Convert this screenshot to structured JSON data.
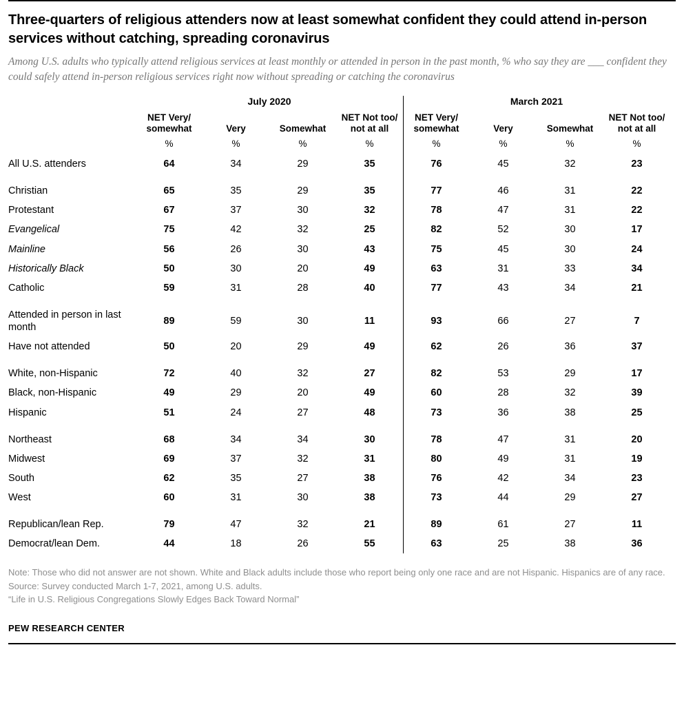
{
  "chart_data": {
    "type": "table",
    "title": "Three-quarters of religious attenders now at least somewhat confident they could attend in-person services without catching, spreading coronavirus",
    "subtitle": "Among U.S. adults who typically attend religious services at least monthly or attended in person in the past month, % who say they are ___ confident they could safely attend in-person religious services right now without spreading or catching the coronavirus",
    "periods": [
      "July 2020",
      "March 2021"
    ],
    "columns": [
      "NET Very/ somewhat",
      "Very",
      "Somewhat",
      "NET Not too/ not at all"
    ],
    "unit": "%",
    "rows": [
      {
        "label": "All U.S. attenders",
        "indent": 0,
        "italic": false,
        "group_start": false,
        "values": [
          64,
          34,
          29,
          35,
          76,
          45,
          32,
          23
        ]
      },
      {
        "label": "Christian",
        "indent": 0,
        "italic": false,
        "group_start": true,
        "values": [
          65,
          35,
          29,
          35,
          77,
          46,
          31,
          22
        ]
      },
      {
        "label": "Protestant",
        "indent": 1,
        "italic": false,
        "group_start": false,
        "values": [
          67,
          37,
          30,
          32,
          78,
          47,
          31,
          22
        ]
      },
      {
        "label": "Evangelical",
        "indent": 2,
        "italic": true,
        "group_start": false,
        "values": [
          75,
          42,
          32,
          25,
          82,
          52,
          30,
          17
        ]
      },
      {
        "label": "Mainline",
        "indent": 2,
        "italic": true,
        "group_start": false,
        "values": [
          56,
          26,
          30,
          43,
          75,
          45,
          30,
          24
        ]
      },
      {
        "label": "Historically Black",
        "indent": 2,
        "italic": true,
        "group_start": false,
        "values": [
          50,
          30,
          20,
          49,
          63,
          31,
          33,
          34
        ]
      },
      {
        "label": "Catholic",
        "indent": 1,
        "italic": false,
        "group_start": false,
        "values": [
          59,
          31,
          28,
          40,
          77,
          43,
          34,
          21
        ]
      },
      {
        "label": "Attended in person in last month",
        "indent": 0,
        "italic": false,
        "group_start": true,
        "values": [
          89,
          59,
          30,
          11,
          93,
          66,
          27,
          7
        ]
      },
      {
        "label": "Have not attended",
        "indent": 0,
        "italic": false,
        "group_start": false,
        "values": [
          50,
          20,
          29,
          49,
          62,
          26,
          36,
          37
        ]
      },
      {
        "label": "White, non-Hispanic",
        "indent": 0,
        "italic": false,
        "group_start": true,
        "values": [
          72,
          40,
          32,
          27,
          82,
          53,
          29,
          17
        ]
      },
      {
        "label": "Black, non-Hispanic",
        "indent": 0,
        "italic": false,
        "group_start": false,
        "values": [
          49,
          29,
          20,
          49,
          60,
          28,
          32,
          39
        ]
      },
      {
        "label": "Hispanic",
        "indent": 0,
        "italic": false,
        "group_start": false,
        "values": [
          51,
          24,
          27,
          48,
          73,
          36,
          38,
          25
        ]
      },
      {
        "label": "Northeast",
        "indent": 0,
        "italic": false,
        "group_start": true,
        "values": [
          68,
          34,
          34,
          30,
          78,
          47,
          31,
          20
        ]
      },
      {
        "label": "Midwest",
        "indent": 0,
        "italic": false,
        "group_start": false,
        "values": [
          69,
          37,
          32,
          31,
          80,
          49,
          31,
          19
        ]
      },
      {
        "label": "South",
        "indent": 0,
        "italic": false,
        "group_start": false,
        "values": [
          62,
          35,
          27,
          38,
          76,
          42,
          34,
          23
        ]
      },
      {
        "label": "West",
        "indent": 0,
        "italic": false,
        "group_start": false,
        "values": [
          60,
          31,
          30,
          38,
          73,
          44,
          29,
          27
        ]
      },
      {
        "label": "Republican/lean Rep.",
        "indent": 0,
        "italic": false,
        "group_start": true,
        "values": [
          79,
          47,
          32,
          21,
          89,
          61,
          27,
          11
        ]
      },
      {
        "label": "Democrat/lean Dem.",
        "indent": 0,
        "italic": false,
        "group_start": false,
        "values": [
          44,
          18,
          26,
          55,
          63,
          25,
          38,
          36
        ]
      }
    ],
    "net_value_indexes": [
      0,
      3,
      4,
      7
    ],
    "notes": [
      "Note: Those who did not answer are not shown. White and Black adults include those who report being only one race and are not Hispanic. Hispanics are of any race.",
      "Source: Survey conducted March 1-7, 2021, among U.S. adults.",
      "“Life in U.S. Religious Congregations Slowly Edges Back Toward Normal”"
    ],
    "footer": "PEW RESEARCH CENTER",
    "colors": {
      "text": "#000000",
      "subtitle_gray": "#767676",
      "note_gray": "#8e8e8e"
    }
  }
}
